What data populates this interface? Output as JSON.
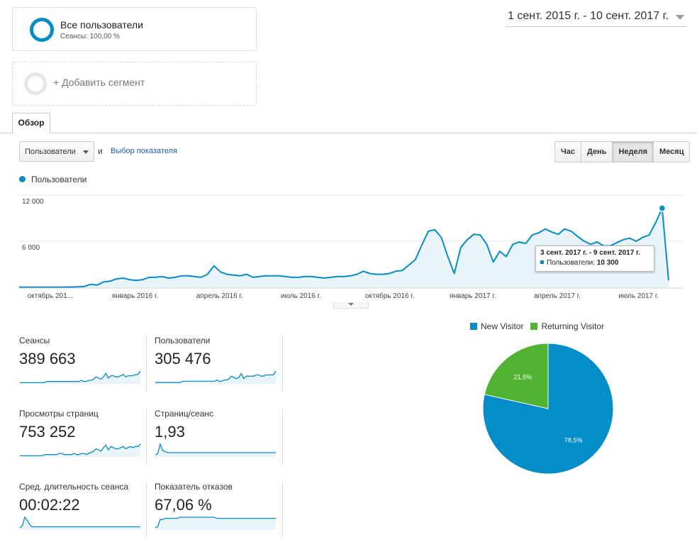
{
  "segment": {
    "name": "Все пользователи",
    "sub": "Сеансы: 100,00 %"
  },
  "add_segment": {
    "label": "+ Добавить сегмент"
  },
  "date_range": "1 сент. 2015 г. - 10 сент. 2017 г.",
  "tab": {
    "label": "Обзор"
  },
  "controls": {
    "metric": "Пользователи",
    "and_word": "и",
    "pick_metric": "Выбор показателя",
    "granularity": [
      "Час",
      "День",
      "Неделя",
      "Месяц"
    ],
    "active_granularity": "Неделя"
  },
  "colors": {
    "accent": "#058dc7",
    "fill": "#e9f3fa",
    "new": "#058dc7",
    "returning": "#50b432"
  },
  "chart_data": [
    {
      "type": "area",
      "legend": "Пользователи",
      "y_ticks": [
        "12 000",
        "6 000"
      ],
      "y_tick_values": [
        12000,
        6000
      ],
      "ylim": [
        0,
        12000
      ],
      "x_labels": [
        "октябрь 201...",
        "январь 2016 г.",
        "апрель 2016 г.",
        "июль 2016 г.",
        "октябрь 2016 г.",
        "январь 2017 г.",
        "апрель 2017 г.",
        "июль 2017 г."
      ],
      "x_label_index": [
        4,
        17,
        30,
        43,
        56,
        69,
        82,
        95
      ],
      "series": [
        {
          "name": "Пользователи",
          "values": [
            30,
            30,
            30,
            30,
            30,
            30,
            30,
            40,
            50,
            60,
            100,
            400,
            300,
            700,
            800,
            1100,
            1200,
            1000,
            900,
            1000,
            1300,
            1300,
            1400,
            1200,
            1300,
            1500,
            1500,
            1400,
            1300,
            1700,
            2800,
            2000,
            1700,
            1600,
            1500,
            1700,
            1300,
            1400,
            1500,
            1500,
            1500,
            1400,
            1300,
            1300,
            1400,
            1400,
            1300,
            1200,
            1300,
            1400,
            1400,
            1500,
            1700,
            2100,
            1800,
            1700,
            1700,
            1800,
            2100,
            2200,
            2900,
            3600,
            5500,
            7300,
            7500,
            6500,
            4000,
            1800,
            5200,
            6200,
            6900,
            6800,
            5600,
            3300,
            4700,
            4000,
            5600,
            5900,
            5700,
            6800,
            7100,
            7600,
            7200,
            6900,
            7600,
            7300,
            6600,
            6000,
            5600,
            5900,
            5400,
            5400,
            5800,
            6200,
            6400,
            6000,
            6500,
            6800,
            8400,
            10300,
            900
          ]
        }
      ],
      "tooltip": {
        "date": "3 сент. 2017 г. - 9 сент. 2017 г.",
        "label": "Пользователи:",
        "value": "10 300"
      }
    },
    {
      "type": "pie",
      "legend": [
        "New Visitor",
        "Returning Visitor"
      ],
      "values": [
        78.5,
        21.5
      ],
      "labels": [
        "78,5%",
        "21,5%"
      ]
    }
  ],
  "metrics": [
    {
      "name": "Сеансы",
      "value": "389 663",
      "spark": [
        1,
        1,
        1,
        1,
        1,
        1,
        1,
        1,
        1,
        1,
        1,
        2,
        2,
        2,
        2,
        2,
        2,
        2,
        2,
        2,
        2,
        2,
        2,
        2,
        2,
        3,
        2,
        2,
        3,
        3,
        4,
        6,
        5,
        4,
        6,
        9,
        5,
        7,
        7,
        6,
        6,
        7,
        8,
        6,
        7,
        7,
        7,
        8,
        8,
        11
      ]
    },
    {
      "name": "Пользователи",
      "value": "305 476",
      "spark": [
        1,
        1,
        1,
        1,
        1,
        1,
        1,
        1,
        1,
        1,
        1,
        2,
        2,
        2,
        2,
        2,
        2,
        2,
        2,
        2,
        2,
        2,
        2,
        2,
        2,
        3,
        2,
        2,
        3,
        3,
        4,
        6,
        5,
        4,
        5,
        8,
        4,
        6,
        6,
        6,
        6,
        7,
        7,
        6,
        6,
        7,
        7,
        7,
        7,
        10
      ]
    },
    {
      "name": "Просмотры страниц",
      "value": "753 252",
      "spark": [
        1,
        1,
        1,
        1,
        1,
        1,
        1,
        1,
        1,
        1,
        2,
        2,
        2,
        2,
        2,
        2,
        3,
        3,
        2,
        2,
        2,
        2,
        3,
        2,
        2,
        3,
        3,
        2,
        3,
        4,
        5,
        7,
        6,
        5,
        8,
        10,
        6,
        9,
        8,
        7,
        7,
        8,
        9,
        7,
        8,
        9,
        8,
        9,
        9,
        11
      ]
    },
    {
      "name": "Страниц/сеанс",
      "value": "1,93",
      "spark": [
        2,
        3,
        12,
        6,
        5,
        4,
        4,
        4,
        4,
        4,
        4,
        4,
        4,
        4,
        4,
        4,
        4,
        4,
        4,
        4,
        4,
        4,
        4,
        4,
        4,
        4,
        4,
        4,
        4,
        4,
        4,
        4,
        4,
        4,
        4,
        4,
        4,
        4,
        4,
        4,
        4,
        4,
        4,
        4,
        4,
        4,
        4,
        4,
        4,
        4
      ]
    },
    {
      "name": "Сред. длительность сеанса",
      "value": "00:02:22",
      "spark": [
        2,
        4,
        12,
        9,
        5,
        3,
        3,
        3,
        3,
        3,
        3,
        3,
        3,
        3,
        3,
        3,
        3,
        3,
        3,
        3,
        3,
        3,
        3,
        3,
        3,
        3,
        3,
        3,
        3,
        3,
        3,
        3,
        3,
        3,
        3,
        3,
        3,
        3,
        3,
        3,
        3,
        3,
        3,
        3,
        3,
        3,
        3,
        3,
        3,
        3
      ]
    },
    {
      "name": "Показатель отказов",
      "value": "67,06 %",
      "spark": [
        2,
        3,
        9,
        9,
        10,
        10,
        10,
        10,
        10,
        10,
        11,
        11,
        11,
        11,
        11,
        11,
        11,
        11,
        11,
        11,
        11,
        11,
        11,
        11,
        11,
        10,
        10,
        10,
        10,
        10,
        10,
        10,
        10,
        10,
        10,
        10,
        10,
        10,
        10,
        10,
        10,
        10,
        10,
        10,
        10,
        10,
        10,
        10,
        10,
        10
      ]
    }
  ]
}
